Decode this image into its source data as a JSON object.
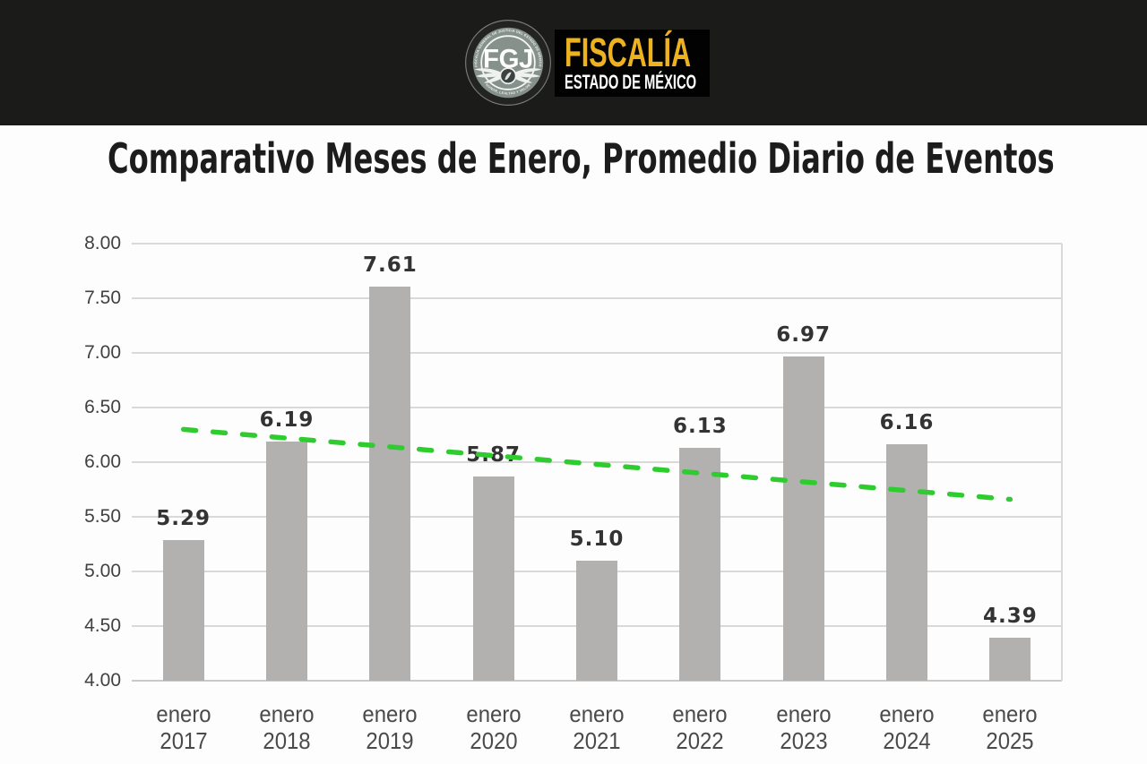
{
  "header": {
    "brand_title": "FISCALÍA",
    "brand_subtitle": "ESTADO DE MÉXICO",
    "seal": {
      "monogram": "FGJ",
      "arc_top": "FISCALÍA GENERAL DE JUSTICIA DEL ESTADO DE MÉXICO",
      "arc_bottom": "HONOR, LEALTAD Y VALOR"
    },
    "colors": {
      "gold": "#eeb11f",
      "bar_background": "#1b1b19",
      "seal_fill": "#8a938e"
    }
  },
  "chart_data": {
    "type": "bar",
    "title": "Comparativo Meses de Enero, Promedio Diario de Eventos",
    "categories": [
      {
        "month": "enero",
        "year": "2017"
      },
      {
        "month": "enero",
        "year": "2018"
      },
      {
        "month": "enero",
        "year": "2019"
      },
      {
        "month": "enero",
        "year": "2020"
      },
      {
        "month": "enero",
        "year": "2021"
      },
      {
        "month": "enero",
        "year": "2022"
      },
      {
        "month": "enero",
        "year": "2023"
      },
      {
        "month": "enero",
        "year": "2024"
      },
      {
        "month": "enero",
        "year": "2025"
      }
    ],
    "values": [
      5.29,
      6.19,
      7.61,
      5.87,
      5.1,
      6.13,
      6.97,
      6.16,
      4.39
    ],
    "value_labels": [
      "5.29",
      "6.19",
      "7.61",
      "5.87",
      "5.10",
      "6.13",
      "6.97",
      "6.16",
      "4.39"
    ],
    "ylim": [
      4.0,
      8.0
    ],
    "ytick_step": 0.5,
    "ytick_labels": [
      "4.00",
      "4.50",
      "5.00",
      "5.50",
      "6.00",
      "6.50",
      "7.00",
      "7.50",
      "8.00"
    ],
    "grid": true,
    "legend": false,
    "bar_color": "#b3b0b0",
    "value_label_color": "#333333",
    "trendline": {
      "style": "dashed",
      "color": "#2fcc2f",
      "start_value": 6.3,
      "end_value": 5.66
    }
  }
}
